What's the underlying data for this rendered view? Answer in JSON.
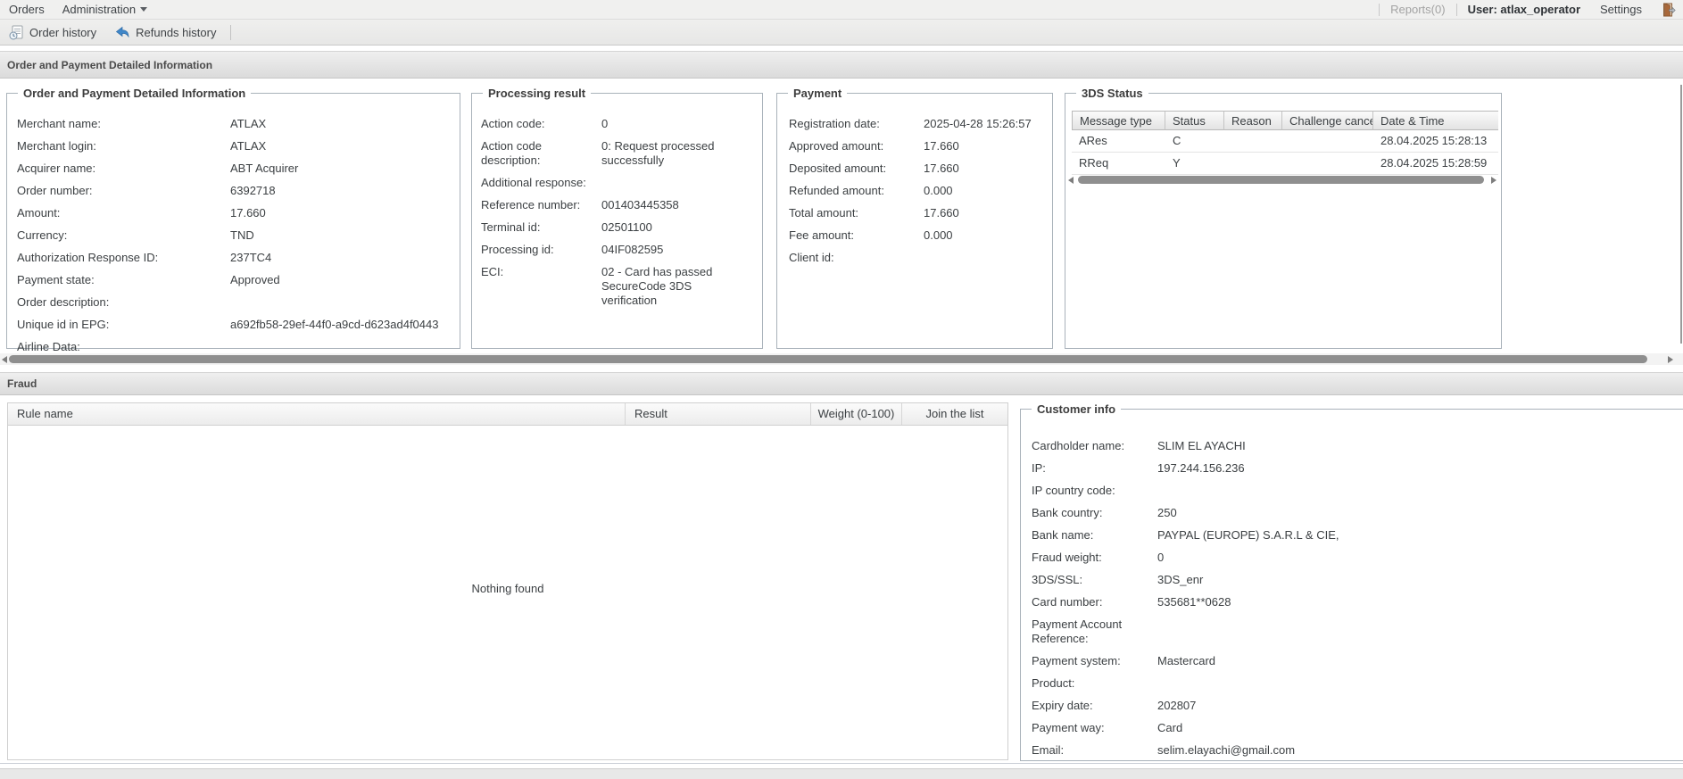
{
  "menu": {
    "orders": "Orders",
    "administration": "Administration",
    "reports": "Reports(0)",
    "user": "User: atlax_operator",
    "settings": "Settings"
  },
  "toolbar": {
    "order_history": "Order history",
    "refunds_history": "Refunds history"
  },
  "section": {
    "title": "Order and Payment Detailed Information"
  },
  "panels": {
    "order_details": {
      "legend": "Order and Payment Detailed Information",
      "fields": [
        {
          "label": "Merchant name:",
          "value": "ATLAX"
        },
        {
          "label": "Merchant login:",
          "value": "ATLAX"
        },
        {
          "label": "Acquirer name:",
          "value": "ABT Acquirer"
        },
        {
          "label": "Order number:",
          "value": "6392718"
        },
        {
          "label": "Amount:",
          "value": "17.660"
        },
        {
          "label": "Currency:",
          "value": "TND"
        },
        {
          "label": "Authorization Response ID:",
          "value": "237TC4"
        },
        {
          "label": "Payment state:",
          "value": "Approved"
        },
        {
          "label": "Order description:",
          "value": ""
        },
        {
          "label": "Unique id in EPG:",
          "value": "a692fb58-29ef-44f0-a9cd-d623ad4f0443"
        },
        {
          "label": "Airline Data:",
          "value": ""
        }
      ]
    },
    "processing_result": {
      "legend": "Processing result",
      "fields": [
        {
          "label": "Action code:",
          "value": "0"
        },
        {
          "label": "Action code description:",
          "value": "0: Request processed successfully"
        },
        {
          "label": "Additional response:",
          "value": ""
        },
        {
          "label": "Reference number:",
          "value": "001403445358"
        },
        {
          "label": "Terminal id:",
          "value": "02501100"
        },
        {
          "label": "Processing id:",
          "value": "04IF082595"
        },
        {
          "label": "ECI:",
          "value": "02 - Card has passed SecureCode 3DS verification"
        }
      ]
    },
    "payment": {
      "legend": "Payment",
      "fields": [
        {
          "label": "Registration date:",
          "value": "2025-04-28 15:26:57"
        },
        {
          "label": "Approved amount:",
          "value": "17.660"
        },
        {
          "label": "Deposited amount:",
          "value": "17.660"
        },
        {
          "label": "Refunded amount:",
          "value": "0.000"
        },
        {
          "label": "Total amount:",
          "value": "17.660"
        },
        {
          "label": "Fee amount:",
          "value": "0.000"
        },
        {
          "label": "Client id:",
          "value": ""
        }
      ]
    },
    "three_ds": {
      "legend": "3DS Status",
      "columns": [
        "Message type",
        "Status",
        "Reason",
        "Challenge cancel",
        "Date & Time"
      ],
      "rows": [
        {
          "cells": [
            "ARes",
            "C",
            "",
            "",
            "28.04.2025 15:28:13"
          ]
        },
        {
          "cells": [
            "RReq",
            "Y",
            "",
            "",
            "28.04.2025 15:28:59"
          ]
        }
      ]
    }
  },
  "fraud": {
    "title": "Fraud",
    "columns": [
      "Rule name",
      "Result",
      "Weight (0-100)",
      "Join the list"
    ],
    "empty_text": "Nothing found"
  },
  "customer_info": {
    "legend": "Customer info",
    "fields": [
      {
        "label": "Cardholder name:",
        "value": "SLIM EL AYACHI"
      },
      {
        "label": "IP:",
        "value": "197.244.156.236"
      },
      {
        "label": "IP country code:",
        "value": ""
      },
      {
        "label": "Bank country:",
        "value": "250"
      },
      {
        "label": "Bank name:",
        "value": "PAYPAL (EUROPE) S.A.R.L & CIE,"
      },
      {
        "label": "Fraud weight:",
        "value": "0"
      },
      {
        "label": "3DS/SSL:",
        "value": "3DS_enr"
      },
      {
        "label": "Card number:",
        "value": "535681**0628"
      },
      {
        "label": "Payment Account Reference:",
        "value": ""
      },
      {
        "label": "Payment system:",
        "value": "Mastercard"
      },
      {
        "label": "Product:",
        "value": ""
      },
      {
        "label": "Expiry date:",
        "value": "202807"
      },
      {
        "label": "Payment way:",
        "value": "Card"
      },
      {
        "label": "Email:",
        "value": "selim.elayachi@gmail.com"
      }
    ]
  },
  "icons": {
    "order_history": "history-doc-icon",
    "refunds_history": "refund-arrow-icon",
    "administration": "chevron-down-icon",
    "logout": "door-exit-icon"
  },
  "colors": {
    "accent_blue": "#3f87c9",
    "door_brown": "#a9683a",
    "bar_gradient_top": "#efefef",
    "bar_gradient_bottom": "#dbdbdb",
    "panel_border": "#a9b2ba",
    "scrollbar_thumb": "#8f8f8f",
    "text": "#3c4043",
    "muted_text": "#a3a3a3"
  }
}
